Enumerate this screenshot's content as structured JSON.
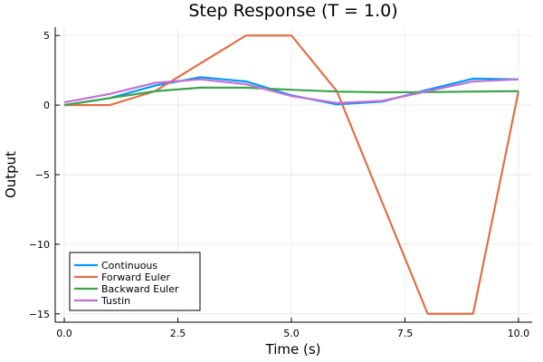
{
  "chart_data": {
    "type": "line",
    "title": "Step Response (T = 1.0)",
    "xlabel": "Time (s)",
    "ylabel": "Output",
    "xlim": [
      -0.2,
      10.3
    ],
    "ylim": [
      -15.6,
      5.6
    ],
    "xticks": [
      0,
      2.5,
      5,
      7.5,
      10
    ],
    "xtick_labels": [
      "0.0",
      "2.5",
      "5.0",
      "7.5",
      "10.0"
    ],
    "yticks": [
      -15,
      -10,
      -5,
      0,
      5
    ],
    "ytick_labels": [
      "−15",
      "−10",
      "−5",
      "0",
      "5"
    ],
    "grid": true,
    "legend_position": "bottom-left",
    "x": [
      0,
      1,
      2,
      3,
      4,
      5,
      6,
      7,
      8,
      9,
      10
    ],
    "series": [
      {
        "name": "Continuous",
        "color": "#009AFA",
        "values": [
          0,
          0.5,
          1.4,
          2.0,
          1.7,
          0.7,
          0.05,
          0.25,
          1.1,
          1.9,
          1.85
        ]
      },
      {
        "name": "Forward Euler",
        "color": "#E26F46",
        "values": [
          0,
          0,
          1.0,
          3.0,
          5.0,
          5.0,
          1.0,
          -7.0,
          -15.0,
          -15.0,
          1.0
        ]
      },
      {
        "name": "Backward Euler",
        "color": "#3DA44D",
        "values": [
          0,
          0.5,
          1.0,
          1.25,
          1.25,
          1.1,
          0.97,
          0.92,
          0.93,
          0.97,
          1.0
        ]
      },
      {
        "name": "Tustin",
        "color": "#C271D2",
        "values": [
          0.2,
          0.8,
          1.6,
          1.85,
          1.5,
          0.65,
          0.15,
          0.3,
          1.0,
          1.7,
          1.85
        ]
      }
    ]
  }
}
